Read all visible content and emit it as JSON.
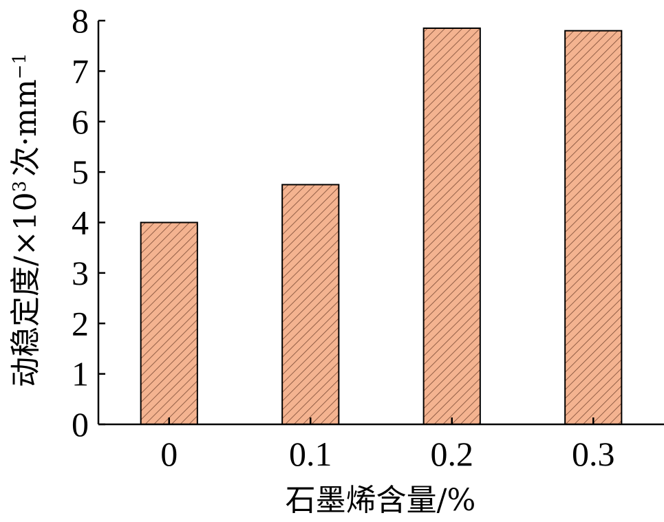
{
  "chart_data": {
    "type": "bar",
    "categories": [
      "0",
      "0.1",
      "0.2",
      "0.3"
    ],
    "values": [
      4.0,
      4.75,
      7.85,
      7.8
    ],
    "title": "",
    "xlabel": "石墨烯含量/%",
    "ylabel": {
      "main": "动稳定度/×10",
      "exponent": "3",
      "unit": "次·mm",
      "unit_exponent": "−1"
    },
    "ylim": [
      0,
      8
    ],
    "yticks": [
      "0",
      "1",
      "2",
      "3",
      "4",
      "5",
      "6",
      "7",
      "8"
    ],
    "grid": false,
    "legend": "none",
    "bar_fill_color": "#f4b390",
    "bar_hatch_color": "#7a4a34",
    "bar_edge_color": "#000000",
    "hatch": "diagonal"
  }
}
